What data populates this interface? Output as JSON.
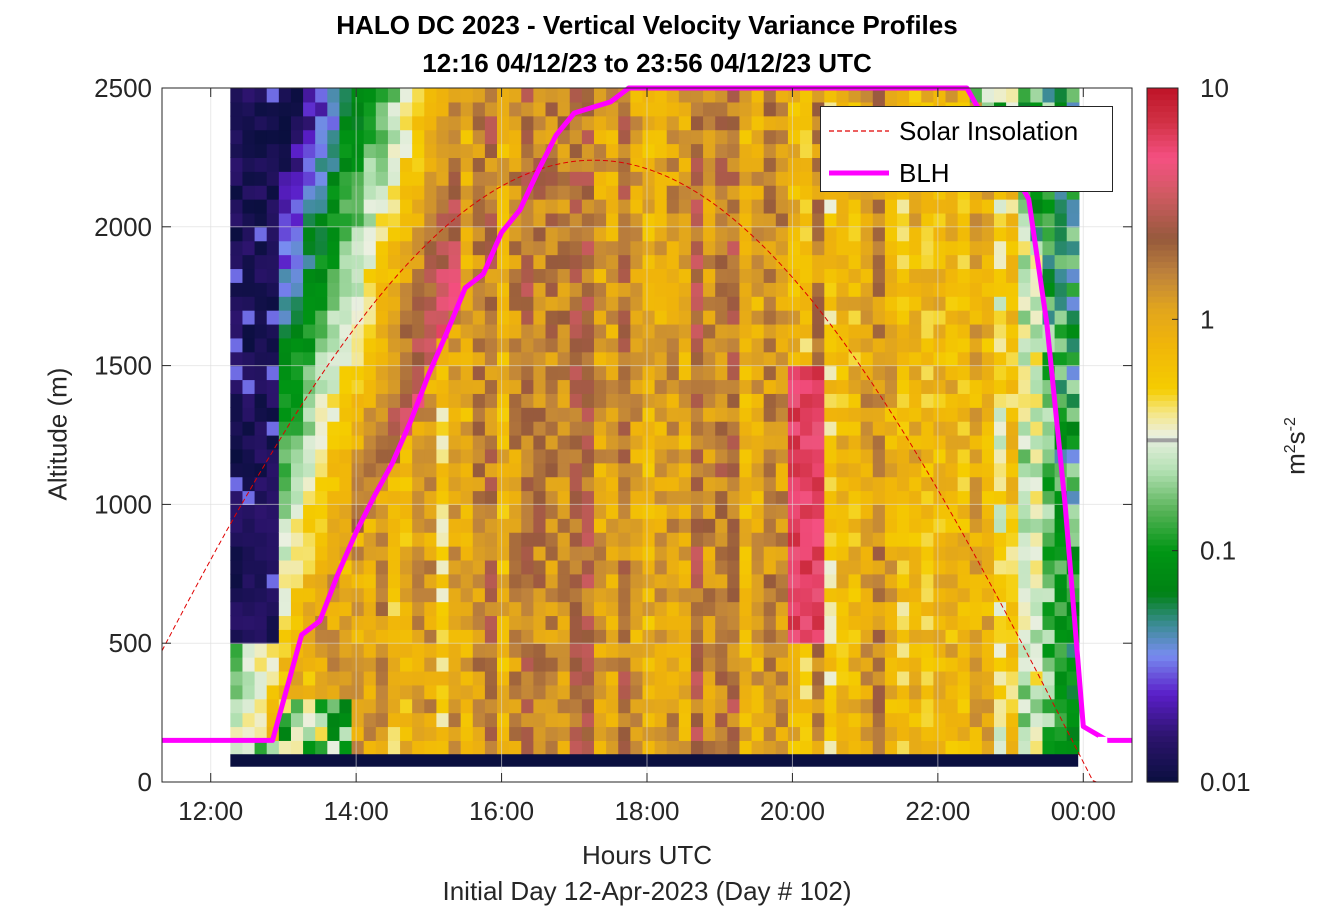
{
  "title_line1": "HALO DC 2023 - Vertical Velocity Variance Profiles",
  "title_line2": "12:16 04/12/23 to 23:56 04/12/23  UTC",
  "xlabel": "Hours UTC",
  "day_label": "Initial Day 12-Apr-2023 (Day # 102)",
  "ylabel": "Altitude (m)",
  "colorbar_unit_base": "m",
  "colorbar_unit_sup1": "2",
  "colorbar_unit_mid": "s",
  "colorbar_unit_sup2": "-2",
  "legend": {
    "solar": "Solar Insolation",
    "blh": "BLH"
  },
  "colors": {
    "blh": "#ff00ff",
    "solar": "#e00000",
    "background_low": "#0a0f3f",
    "grid": "#dcdcdc"
  },
  "chart_data": {
    "type": "heatmap",
    "title": "HALO DC 2023 - Vertical Velocity Variance Profiles",
    "subtitle": "12:16 04/12/23 to 23:56 04/12/23  UTC",
    "xlabel": "Hours UTC",
    "ylabel": "Altitude (m)",
    "xlim": [
      11.33,
      24.67
    ],
    "ylim": [
      0,
      2500
    ],
    "x_ticks": [
      12,
      14,
      16,
      18,
      20,
      22,
      24
    ],
    "x_tick_labels": [
      "12:00",
      "14:00",
      "16:00",
      "18:00",
      "20:00",
      "22:00",
      "00:00"
    ],
    "y_ticks": [
      0,
      500,
      1000,
      1500,
      2000,
      2500
    ],
    "y_tick_labels": [
      "0",
      "500",
      "1000",
      "1500",
      "2000",
      "2500"
    ],
    "colorbar": {
      "scale": "log",
      "range": [
        0.01,
        10
      ],
      "ticks": [
        0.01,
        0.1,
        1,
        10
      ],
      "tick_labels": [
        "0.01",
        "0.1",
        "1",
        "10"
      ],
      "colormap": "white-green-blue-purple (low) / yellow-orange-brown-red (high)"
    },
    "grid": true,
    "legend_position": "top-right",
    "heatmap": {
      "x_start": 12.27,
      "x_end": 23.93,
      "time_step_hours": 0.1667,
      "altitude_bottom": 100,
      "altitude_top": 2500,
      "altitude_step": 50,
      "description": "low variance (<0.05) before ~14:00 and above 1000 m early; high variance (0.5-5) between ~14:30 and 23:00 below BLH; peak (~5) near 20:15 at 600-1200 m"
    },
    "series": [
      {
        "name": "BLH",
        "type": "line",
        "x": [
          11.33,
          12.85,
          13.25,
          13.5,
          13.75,
          14.0,
          14.25,
          14.5,
          14.75,
          15.0,
          15.25,
          15.5,
          15.75,
          16.0,
          16.25,
          16.5,
          16.75,
          17.0,
          17.25,
          17.5,
          17.75,
          18.0,
          18.25,
          18.5,
          22.4,
          23.25,
          23.5,
          23.75,
          24.0,
          24.33,
          24.67
        ],
        "y": [
          150,
          150,
          530,
          580,
          750,
          900,
          1030,
          1150,
          1300,
          1470,
          1620,
          1780,
          1830,
          1980,
          2060,
          2200,
          2330,
          2410,
          2430,
          2450,
          2500,
          2500,
          2500,
          2500,
          2500,
          2100,
          1650,
          1000,
          200,
          150,
          150
        ]
      },
      {
        "name": "Solar Insolation",
        "type": "line",
        "shape": "sinusoid",
        "peak_time": 17.27,
        "peak_altitude": 2240,
        "sunrise": 10.4,
        "sunset": 24.15
      }
    ]
  }
}
